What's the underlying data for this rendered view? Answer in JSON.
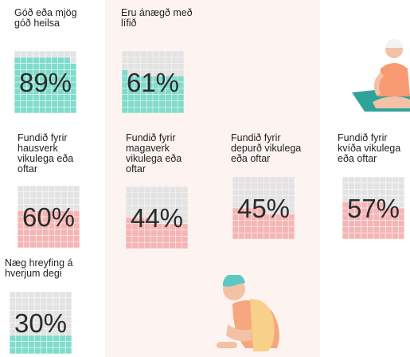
{
  "items": [
    {
      "label": [
        "Góð eða mjög",
        "góð heilsa"
      ],
      "value": 89,
      "value_label": "89%",
      "color": "#7fdccb"
    },
    {
      "label": [
        "Eru ánægð með",
        "lífið"
      ],
      "value": 61,
      "value_label": "61%",
      "color": "#7fdccb"
    },
    {
      "label": [
        "Fundið fyrir",
        "hausverk",
        "vikulega eða",
        "oftar"
      ],
      "value": 60,
      "value_label": "60%",
      "color": "#f5b5b5"
    },
    {
      "label": [
        "Fundið fyrir",
        "magaverk",
        "vikulega eða",
        "oftar"
      ],
      "value": 44,
      "value_label": "44%",
      "color": "#f5b5b5"
    },
    {
      "label": [
        "Fundið fyrir",
        "depurð vikulega",
        "eða oftar"
      ],
      "value": 45,
      "value_label": "45%",
      "color": "#f5b5b5"
    },
    {
      "label": [
        "Fundið fyrir",
        "kvíða vikulega",
        "eða oftar"
      ],
      "value": 57,
      "value_label": "57%",
      "color": "#f5b5b5"
    },
    {
      "label": [
        "Næg hreyfing á",
        "hverjum degi"
      ],
      "value": 30,
      "value_label": "30%",
      "color": "#7fdccb"
    }
  ]
}
